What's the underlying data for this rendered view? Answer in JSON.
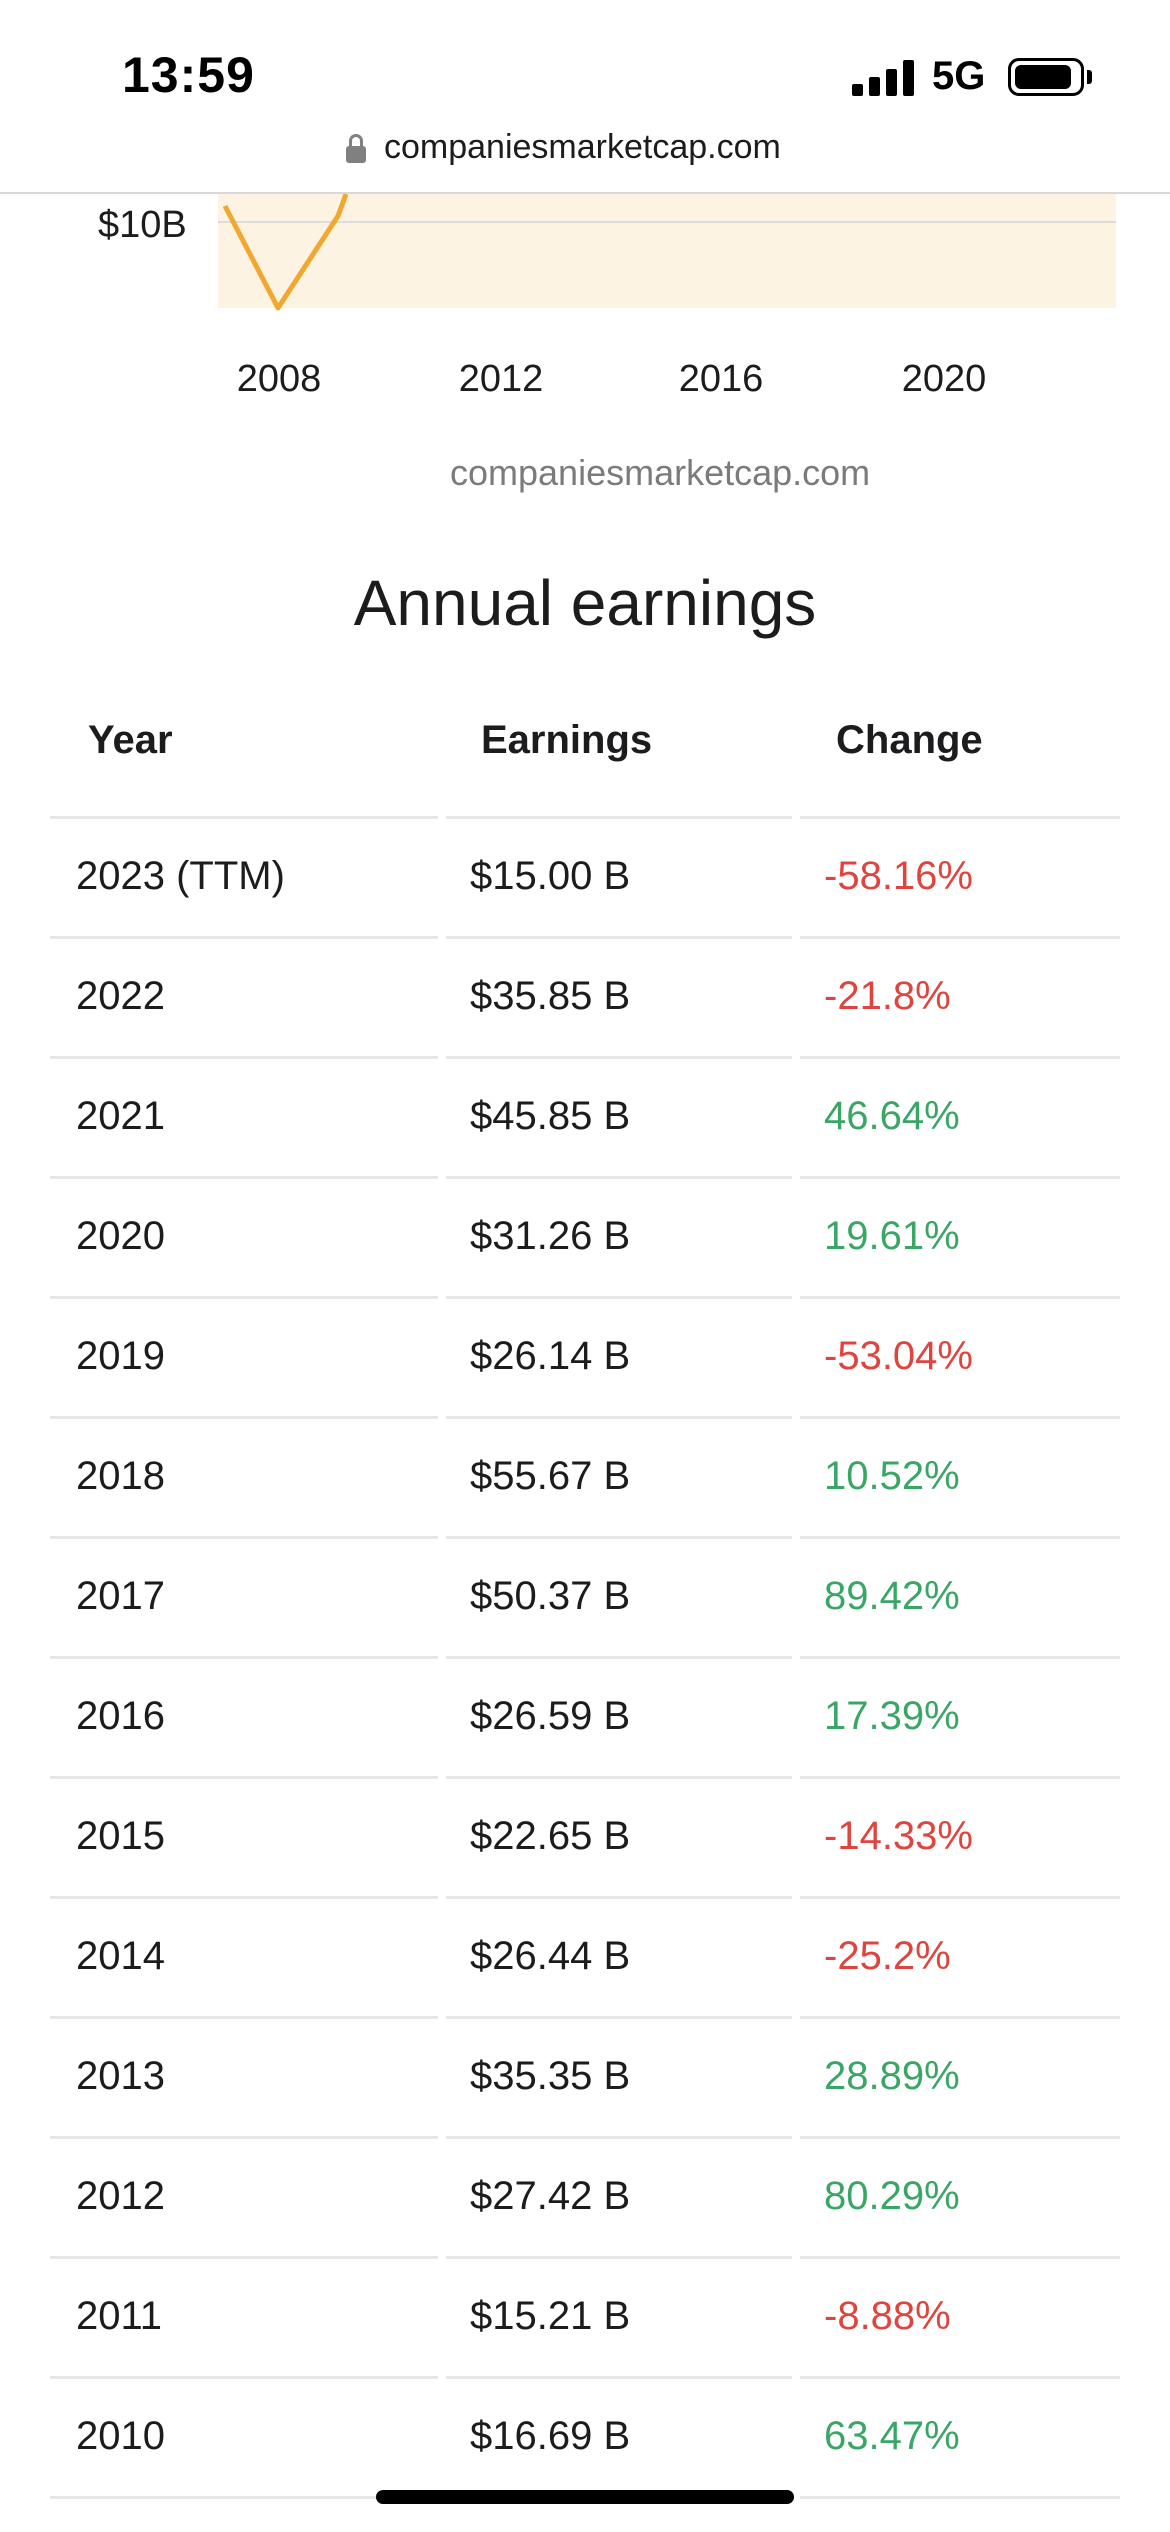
{
  "status_bar": {
    "time": "13:59",
    "network": "5G"
  },
  "browser": {
    "url": "companiesmarketcap.com"
  },
  "chart": {
    "y_tick": "$10B",
    "x_ticks": [
      "2008",
      "2012",
      "2016",
      "2020"
    ],
    "watermark": "companiesmarketcap.com",
    "line_color": "#f0a830",
    "area_color": "#fdf3e3"
  },
  "section_title": "Annual earnings",
  "table": {
    "headers": {
      "year": "Year",
      "earnings": "Earnings",
      "change": "Change"
    },
    "rows": [
      {
        "year": "2023 (TTM)",
        "earnings": "$15.00 B",
        "change": "-58.16%",
        "sign": "neg"
      },
      {
        "year": "2022",
        "earnings": "$35.85 B",
        "change": "-21.8%",
        "sign": "neg"
      },
      {
        "year": "2021",
        "earnings": "$45.85 B",
        "change": "46.64%",
        "sign": "pos"
      },
      {
        "year": "2020",
        "earnings": "$31.26 B",
        "change": "19.61%",
        "sign": "pos"
      },
      {
        "year": "2019",
        "earnings": "$26.14 B",
        "change": "-53.04%",
        "sign": "neg"
      },
      {
        "year": "2018",
        "earnings": "$55.67 B",
        "change": "10.52%",
        "sign": "pos"
      },
      {
        "year": "2017",
        "earnings": "$50.37 B",
        "change": "89.42%",
        "sign": "pos"
      },
      {
        "year": "2016",
        "earnings": "$26.59 B",
        "change": "17.39%",
        "sign": "pos"
      },
      {
        "year": "2015",
        "earnings": "$22.65 B",
        "change": "-14.33%",
        "sign": "neg"
      },
      {
        "year": "2014",
        "earnings": "$26.44 B",
        "change": "-25.2%",
        "sign": "neg"
      },
      {
        "year": "2013",
        "earnings": "$35.35 B",
        "change": "28.89%",
        "sign": "pos"
      },
      {
        "year": "2012",
        "earnings": "$27.42 B",
        "change": "80.29%",
        "sign": "pos"
      },
      {
        "year": "2011",
        "earnings": "$15.21 B",
        "change": "-8.88%",
        "sign": "neg"
      },
      {
        "year": "2010",
        "earnings": "$16.69 B",
        "change": "63.47%",
        "sign": "pos"
      }
    ]
  },
  "colors": {
    "negative": "#e0443e",
    "positive": "#3aa666"
  }
}
